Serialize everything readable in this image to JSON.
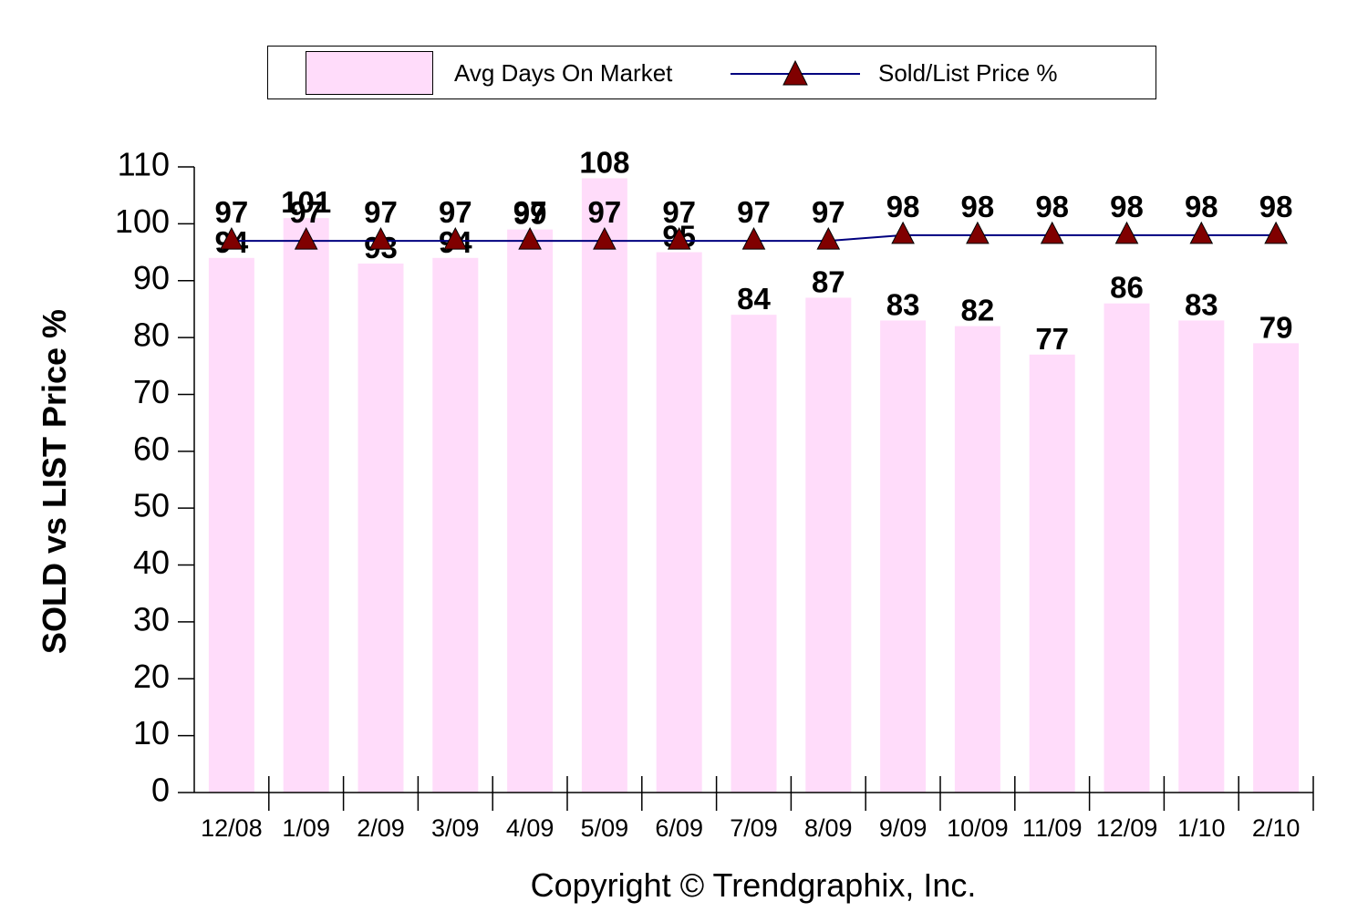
{
  "chart_data": {
    "type": "bar",
    "categories": [
      "12/08",
      "1/09",
      "2/09",
      "3/09",
      "4/09",
      "5/09",
      "6/09",
      "7/09",
      "8/09",
      "9/09",
      "10/09",
      "11/09",
      "12/09",
      "1/10",
      "2/10"
    ],
    "series": [
      {
        "name": "Avg Days On Market",
        "type": "bar",
        "color": "#ffdcfa",
        "values": [
          94,
          101,
          93,
          94,
          99,
          108,
          95,
          84,
          87,
          83,
          82,
          77,
          86,
          83,
          79
        ]
      },
      {
        "name": "Sold/List Price %",
        "type": "line",
        "color": "#00007f",
        "marker": "triangle",
        "marker_color": "#800000",
        "values": [
          97,
          97,
          97,
          97,
          97,
          97,
          97,
          97,
          97,
          98,
          98,
          98,
          98,
          98,
          98
        ]
      }
    ],
    "ylabel": "SOLD vs LIST Price %",
    "xlabel": "",
    "ylim": [
      0,
      110
    ],
    "yticks": [
      0,
      10,
      20,
      30,
      40,
      50,
      60,
      70,
      80,
      90,
      100,
      110
    ],
    "grid": false,
    "legend_position": "top-center"
  },
  "copyright": "Copyright © Trendgraphix, Inc."
}
